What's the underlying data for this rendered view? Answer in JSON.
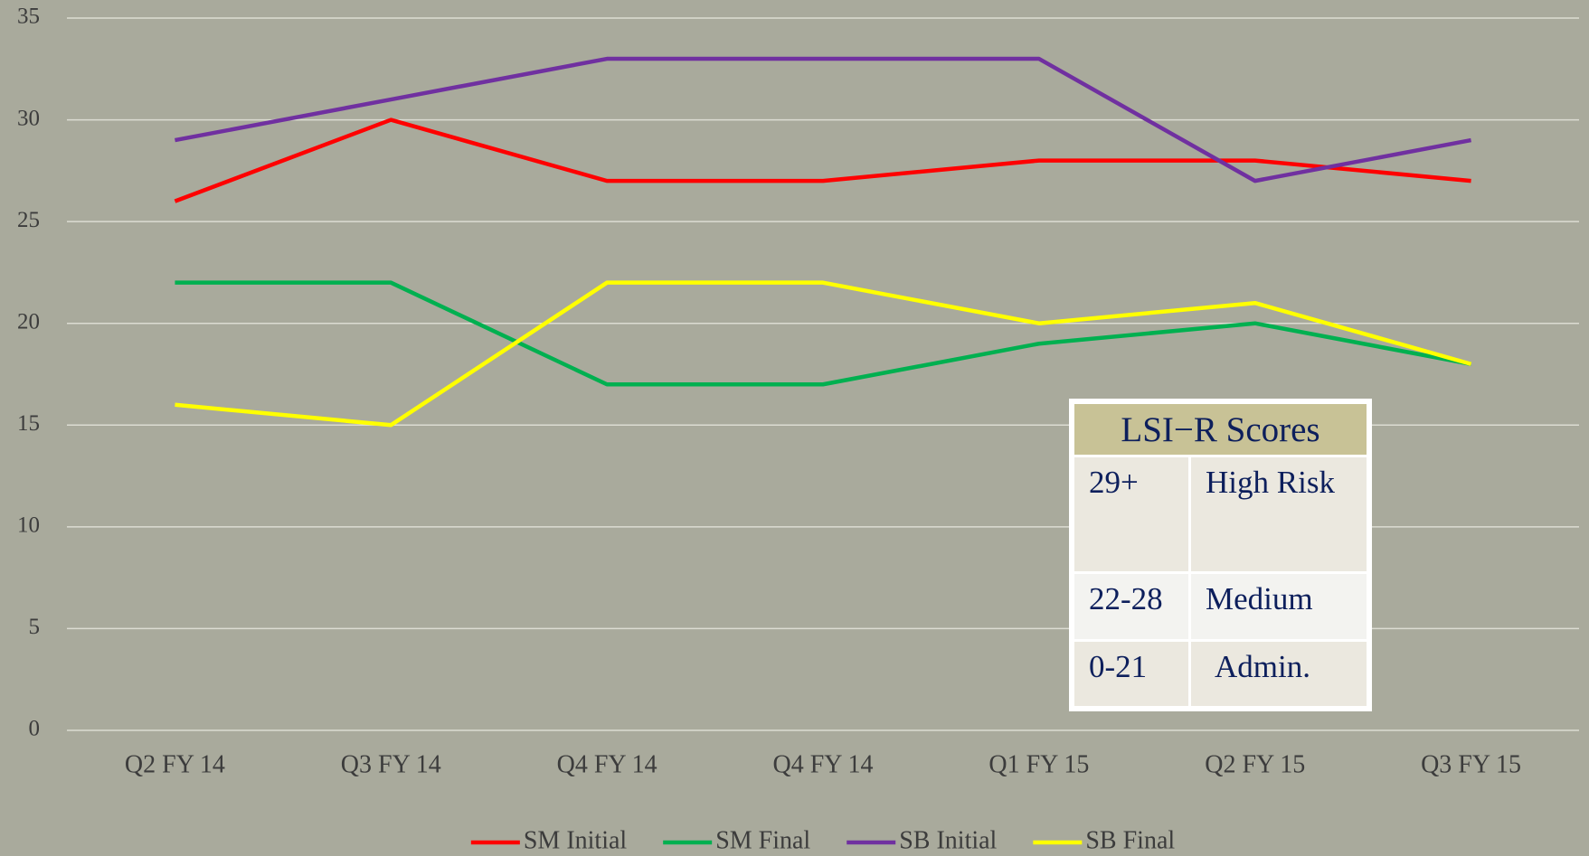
{
  "chart_data": {
    "type": "line",
    "categories": [
      "Q2 FY 14",
      "Q3 FY 14",
      "Q4 FY 14",
      "Q4 FY 14",
      "Q1 FY 15",
      "Q2 FY 15",
      "Q3 FY 15"
    ],
    "series": [
      {
        "name": "SM Initial",
        "color": "#ff0000",
        "values": [
          26,
          30,
          27,
          27,
          28,
          28,
          27
        ]
      },
      {
        "name": "SM Final",
        "color": "#00b050",
        "values": [
          22,
          22,
          17,
          17,
          19,
          20,
          18
        ]
      },
      {
        "name": "SB Initial",
        "color": "#7030a0",
        "values": [
          29,
          31,
          33,
          33,
          33,
          27,
          29
        ]
      },
      {
        "name": "SB Final",
        "color": "#ffff00",
        "values": [
          16,
          15,
          22,
          22,
          20,
          21,
          18
        ]
      }
    ],
    "ylim": [
      0,
      35
    ],
    "yticks": [
      0,
      5,
      10,
      15,
      20,
      25,
      30,
      35
    ],
    "grid": true,
    "legend": "bottom"
  },
  "table": {
    "title": "LSI−R Scores",
    "rows": [
      [
        "29+",
        "High Risk"
      ],
      [
        "22-28",
        "Medium"
      ],
      [
        "0-21",
        "Admin."
      ]
    ]
  }
}
